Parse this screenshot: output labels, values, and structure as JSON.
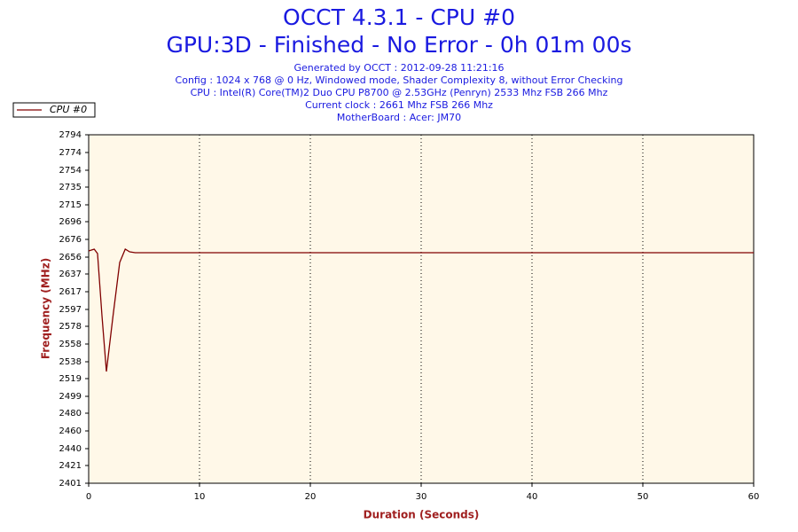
{
  "chart_data": {
    "type": "line",
    "title": "OCCT 4.3.1 - CPU #0",
    "subtitle": "GPU:3D - Finished - No Error - 0h 01m 00s",
    "info": [
      "Generated by OCCT : 2012-09-28 11:21:16",
      "Config : 1024 x 768 @ 0 Hz, Windowed mode, Shader Complexity 8, without Error Checking",
      "CPU : Intel(R) Core(TM)2 Duo CPU P8700 @ 2.53GHz (Penryn) 2533 Mhz FSB 266 Mhz",
      "Current clock : 2661 Mhz FSB 266 Mhz",
      "MotherBoard : Acer: JM70"
    ],
    "x_label": "Duration (Seconds)",
    "y_label": "Frequency (MHz)",
    "x": [
      0,
      0.5,
      0.8,
      1.2,
      1.6,
      2.2,
      2.8,
      3.3,
      3.7,
      4.2,
      60
    ],
    "series": [
      {
        "name": "CPU #0",
        "color": "#800000",
        "values": [
          2663,
          2665,
          2660,
          2590,
          2527,
          2590,
          2650,
          2665,
          2662,
          2661,
          2661
        ]
      }
    ],
    "xlim": [
      0,
      60
    ],
    "xticks": [
      0,
      10,
      20,
      30,
      40,
      50,
      60
    ],
    "ylim": [
      2401,
      2794
    ],
    "yticks": [
      2401,
      2421,
      2440,
      2460,
      2480,
      2499,
      2519,
      2538,
      2558,
      2578,
      2597,
      2617,
      2637,
      2656,
      2676,
      2696,
      2715,
      2735,
      2754,
      2774,
      2794
    ],
    "grid": true,
    "legend": "top-left"
  }
}
